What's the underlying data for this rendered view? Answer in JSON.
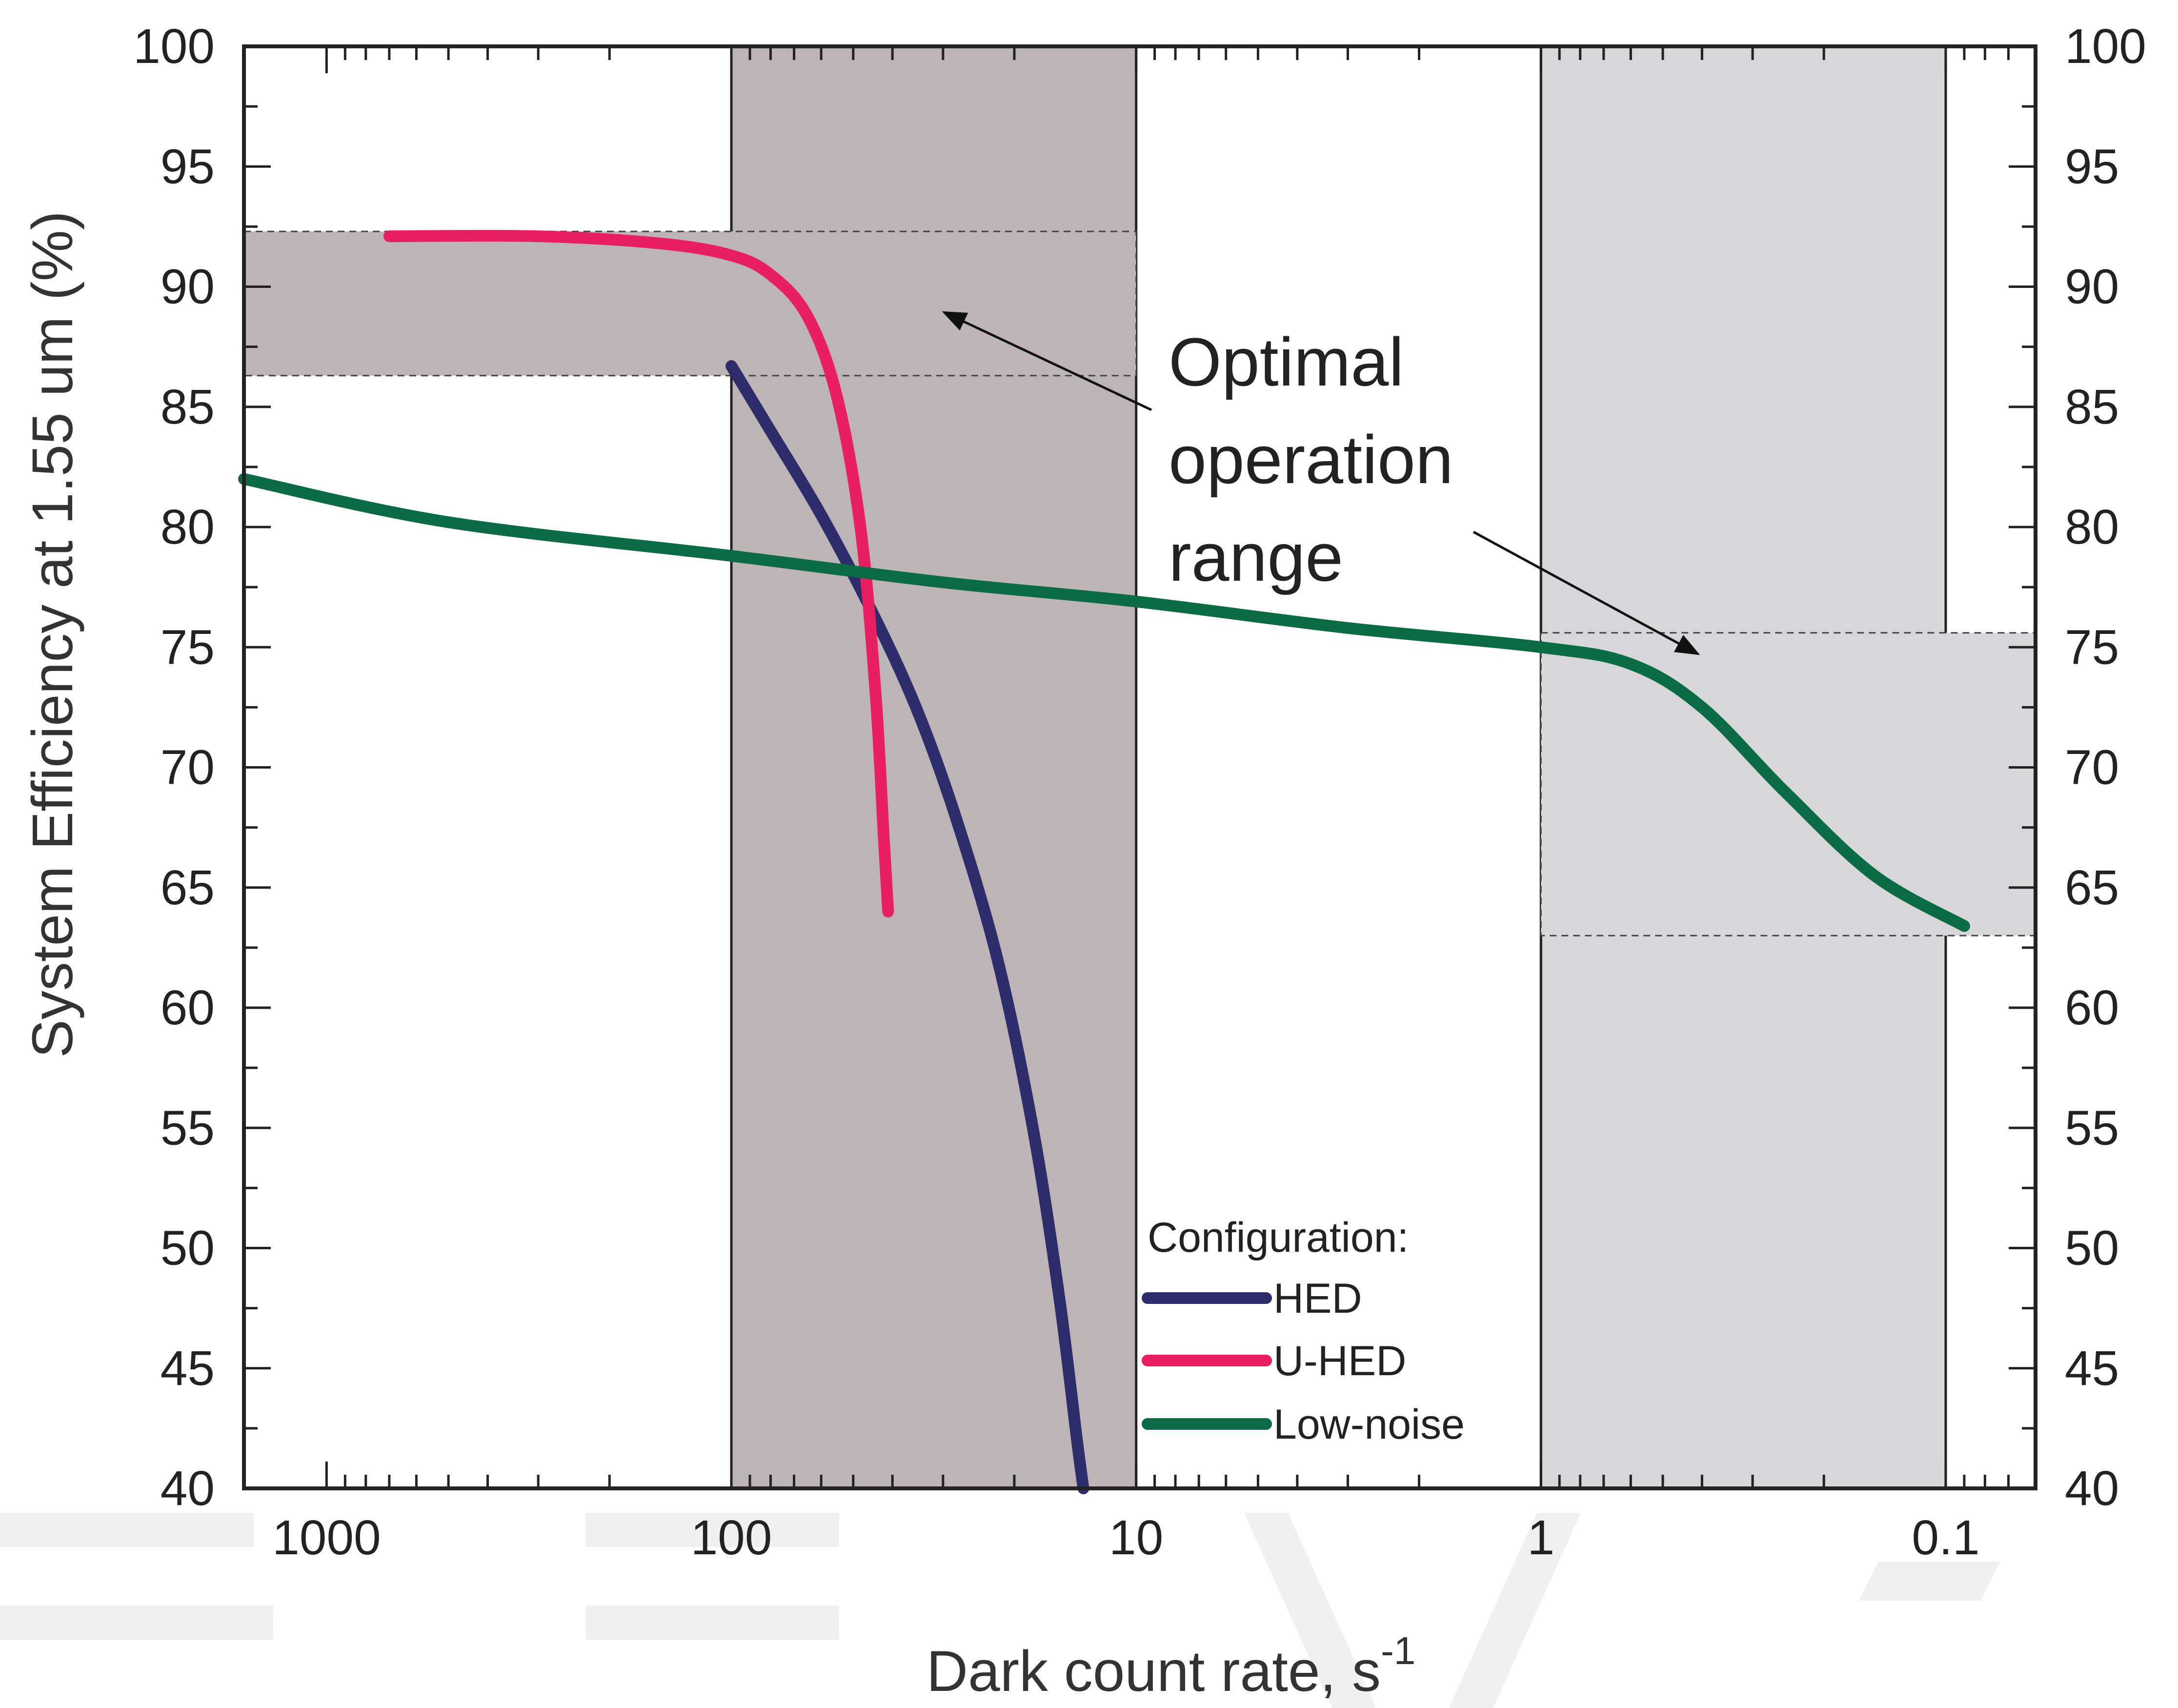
{
  "chart_data": {
    "type": "line",
    "xlabel": "Dark count rate, s",
    "xlabel_superscript": "-1",
    "ylabel": "System Efficiency at 1.55 um (%)",
    "x_scale": "log",
    "x_reversed": true,
    "xlim": [
      1600,
      0.06
    ],
    "ylim": [
      40,
      100
    ],
    "x_ticks": [
      1000,
      100,
      10,
      1,
      0.1
    ],
    "x_tick_labels": [
      "1000",
      "100",
      "10",
      "1",
      "0.1"
    ],
    "y_ticks": [
      40,
      45,
      50,
      55,
      60,
      65,
      70,
      75,
      80,
      85,
      90,
      95,
      100
    ],
    "y_tick_labels": [
      "40",
      "45",
      "50",
      "55",
      "60",
      "65",
      "70",
      "75",
      "80",
      "85",
      "90",
      "95",
      "100"
    ],
    "series": [
      {
        "name": "HED",
        "color": "#2e2d6b",
        "points": [
          [
            100,
            86.7
          ],
          [
            80,
            84
          ],
          [
            60,
            80.5
          ],
          [
            45,
            76.5
          ],
          [
            35,
            72.5
          ],
          [
            28,
            68
          ],
          [
            22,
            62
          ],
          [
            18,
            55
          ],
          [
            15.5,
            48
          ],
          [
            14,
            42
          ],
          [
            13.5,
            40
          ]
        ]
      },
      {
        "name": "U-HED",
        "color": "#e8205f",
        "points": [
          [
            700,
            92.1
          ],
          [
            300,
            92.1
          ],
          [
            150,
            91.8
          ],
          [
            100,
            91.3
          ],
          [
            80,
            90.5
          ],
          [
            65,
            88.8
          ],
          [
            55,
            85.5
          ],
          [
            48,
            80
          ],
          [
            44,
            73
          ],
          [
            42,
            67
          ],
          [
            41,
            64
          ]
        ]
      },
      {
        "name": "Low-noise",
        "color": "#0a6b45",
        "points": [
          [
            1600,
            82
          ],
          [
            500,
            80.2
          ],
          [
            100,
            78.8
          ],
          [
            30,
            77.7
          ],
          [
            10,
            76.9
          ],
          [
            3,
            75.8
          ],
          [
            1,
            75
          ],
          [
            0.6,
            74.3
          ],
          [
            0.4,
            72.5
          ],
          [
            0.25,
            69
          ],
          [
            0.15,
            65.5
          ],
          [
            0.09,
            63.4
          ]
        ]
      }
    ],
    "shaded_regions": [
      {
        "x_range": [
          100,
          10
        ],
        "y_range": [
          40,
          100
        ],
        "color": "#bdb5b5",
        "border": "solid"
      },
      {
        "x_range": [
          1,
          0.1
        ],
        "y_range": [
          40,
          100
        ],
        "color": "#d7d7d9",
        "border": "solid"
      },
      {
        "x_range": [
          1600,
          10
        ],
        "y_range": [
          86.3,
          92.3
        ],
        "color": "#bdb5b5",
        "border": "dashed"
      },
      {
        "x_range": [
          1,
          0.06
        ],
        "y_range": [
          63,
          75.6
        ],
        "color": "#d7d7d9",
        "border": "dashed"
      }
    ],
    "annotation": {
      "lines": [
        "Optimal",
        "operation",
        "range"
      ]
    },
    "legend": {
      "title": "Configuration:",
      "placement": "bottom-center",
      "entries": [
        "HED",
        "U-HED",
        "Low-noise"
      ]
    },
    "grid": false,
    "right_axis_mirrors_left": true
  }
}
